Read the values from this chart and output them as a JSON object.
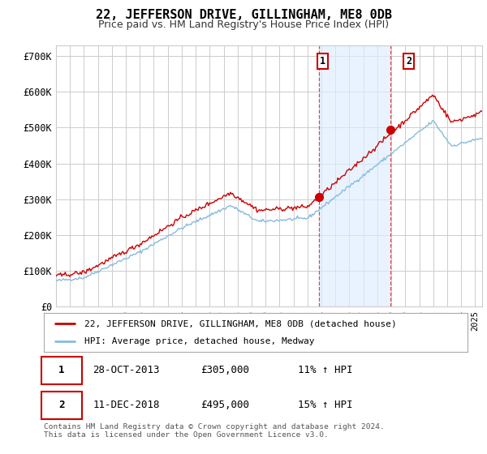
{
  "title": "22, JEFFERSON DRIVE, GILLINGHAM, ME8 0DB",
  "subtitle": "Price paid vs. HM Land Registry's House Price Index (HPI)",
  "ylabel_ticks": [
    "£0",
    "£100K",
    "£200K",
    "£300K",
    "£400K",
    "£500K",
    "£600K",
    "£700K"
  ],
  "ytick_vals": [
    0,
    100000,
    200000,
    300000,
    400000,
    500000,
    600000,
    700000
  ],
  "ylim": [
    0,
    730000
  ],
  "xlim_start": 1995.0,
  "xlim_end": 2025.5,
  "purchase1_x": 2013.83,
  "purchase1_y": 305000,
  "purchase2_x": 2018.94,
  "purchase2_y": 495000,
  "shade_x1": 2013.83,
  "shade_x2": 2018.94,
  "vline_color": "#cc0000",
  "shade_color": "#ddeeff",
  "hpi_line_color": "#88bbdd",
  "price_line_color": "#cc0000",
  "dot_color": "#cc0000",
  "legend_label_price": "22, JEFFERSON DRIVE, GILLINGHAM, ME8 0DB (detached house)",
  "legend_label_hpi": "HPI: Average price, detached house, Medway",
  "annotation1_label": "1",
  "annotation2_label": "2",
  "table_rows": [
    [
      "1",
      "28-OCT-2013",
      "£305,000",
      "11% ↑ HPI"
    ],
    [
      "2",
      "11-DEC-2018",
      "£495,000",
      "15% ↑ HPI"
    ]
  ],
  "footer_text": "Contains HM Land Registry data © Crown copyright and database right 2024.\nThis data is licensed under the Open Government Licence v3.0.",
  "background_color": "#ffffff",
  "grid_color": "#cccccc"
}
